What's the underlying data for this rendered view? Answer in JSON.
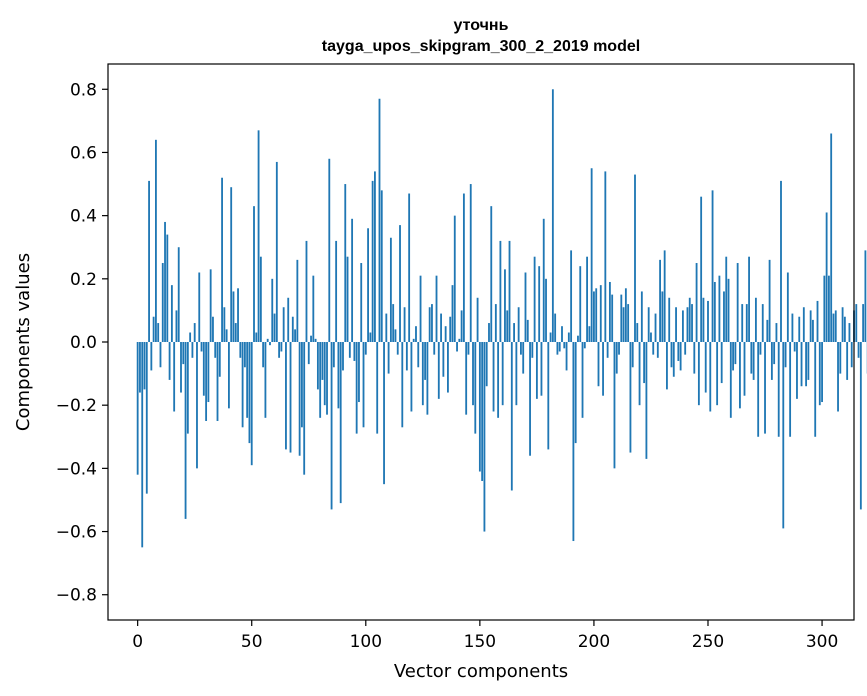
{
  "chart_data": {
    "type": "bar",
    "title_line1": "уточнь",
    "title_line2": "tayga_upos_skipgram_300_2_2019 model",
    "xlabel": "Vector components",
    "ylabel": "Components values",
    "xlim": [
      -13,
      314
    ],
    "ylim": [
      -0.88,
      0.88
    ],
    "xticks": [
      0,
      50,
      100,
      150,
      200,
      250,
      300
    ],
    "xtick_labels": [
      "0",
      "50",
      "100",
      "150",
      "200",
      "250",
      "300"
    ],
    "yticks": [
      0.8,
      0.6,
      0.4,
      0.2,
      0.0,
      -0.2,
      -0.4,
      -0.6,
      -0.8
    ],
    "ytick_labels": [
      "0.8",
      "0.6",
      "0.4",
      "0.2",
      "0.0",
      "−0.2",
      "−0.4",
      "−0.6",
      "−0.8"
    ],
    "bar_color": "#1f77b4",
    "grid": false,
    "values": [
      -0.42,
      -0.16,
      -0.65,
      -0.15,
      -0.48,
      0.51,
      -0.09,
      0.08,
      0.64,
      0.06,
      -0.08,
      0.25,
      0.38,
      0.34,
      -0.12,
      0.18,
      -0.22,
      0.1,
      0.3,
      -0.16,
      -0.07,
      -0.56,
      -0.29,
      0.03,
      -0.05,
      0.06,
      -0.4,
      0.22,
      -0.03,
      -0.17,
      -0.25,
      -0.19,
      0.23,
      0.08,
      -0.05,
      -0.25,
      -0.11,
      0.52,
      0.11,
      0.04,
      -0.21,
      0.49,
      0.16,
      0.06,
      0.17,
      -0.05,
      -0.27,
      -0.08,
      -0.24,
      -0.32,
      -0.39,
      0.43,
      0.03,
      0.67,
      0.27,
      -0.08,
      -0.24,
      0.01,
      -0.01,
      0.2,
      0.09,
      0.57,
      -0.05,
      -0.03,
      0.11,
      -0.34,
      0.14,
      -0.35,
      0.08,
      0.04,
      0.26,
      -0.36,
      -0.27,
      -0.42,
      0.32,
      -0.07,
      0.02,
      0.21,
      0.01,
      -0.15,
      -0.24,
      -0.12,
      -0.2,
      -0.23,
      0.58,
      -0.53,
      -0.08,
      0.32,
      -0.21,
      -0.51,
      -0.09,
      0.5,
      0.27,
      -0.05,
      0.39,
      -0.06,
      -0.29,
      -0.19,
      0.25,
      -0.27,
      -0.04,
      0.36,
      0.03,
      0.51,
      0.54,
      -0.29,
      0.77,
      0.48,
      -0.45,
      0.09,
      -0.1,
      0.33,
      0.12,
      0.04,
      -0.04,
      0.37,
      -0.27,
      0.11,
      -0.09,
      0.47,
      -0.22,
      0.01,
      0.05,
      -0.08,
      0.21,
      -0.2,
      -0.12,
      -0.23,
      0.11,
      0.12,
      -0.04,
      0.21,
      -0.18,
      0.09,
      -0.11,
      0.05,
      -0.16,
      0.08,
      0.18,
      0.4,
      -0.03,
      0.01,
      0.1,
      0.47,
      -0.23,
      -0.04,
      0.5,
      -0.2,
      -0.29,
      0.14,
      -0.41,
      -0.44,
      -0.6,
      -0.14,
      0.06,
      0.43,
      -0.22,
      0.12,
      -0.24,
      0.32,
      -0.2,
      0.23,
      0.1,
      0.32,
      -0.47,
      0.06,
      -0.2,
      0.11,
      -0.04,
      -0.1,
      0.22,
      0.07,
      -0.36,
      -0.05,
      0.27,
      -0.18,
      0.24,
      -0.17,
      0.39,
      0.2,
      -0.34,
      0.03,
      0.8,
      0.09,
      -0.04,
      -0.03,
      0.05,
      -0.02,
      -0.09,
      0.03,
      0.29,
      -0.63,
      -0.32,
      0.02,
      0.24,
      -0.24,
      -0.02,
      0.27,
      0.05,
      0.55,
      0.16,
      0.17,
      -0.14,
      0.18,
      -0.17,
      0.54,
      -0.05,
      0.19,
      0.15,
      -0.4,
      -0.1,
      -0.04,
      0.15,
      0.11,
      0.17,
      0.12,
      -0.35,
      -0.08,
      0.53,
      0.06,
      -0.2,
      0.16,
      -0.13,
      -0.37,
      0.11,
      0.03,
      -0.04,
      0.09,
      -0.05,
      0.26,
      0.16,
      0.29,
      -0.15,
      0.14,
      -0.08,
      -0.11,
      0.11,
      -0.06,
      -0.09,
      0.1,
      -0.04,
      0.11,
      0.14,
      0.12,
      -0.1,
      0.25,
      -0.2,
      0.46,
      0.14,
      -0.16,
      0.13,
      -0.22,
      0.48,
      0.19,
      -0.2,
      0.21,
      -0.13,
      0.16,
      0.27,
      0.2,
      -0.24,
      -0.09,
      -0.07,
      0.25,
      -0.21,
      0.12,
      -0.17,
      0.12,
      0.27,
      -0.1,
      -0.12,
      0.14,
      -0.3,
      -0.04,
      0.12,
      -0.29,
      0.07,
      0.26,
      -0.12,
      -0.07,
      0.06,
      -0.3,
      0.51,
      -0.59,
      -0.08,
      0.22,
      -0.3,
      0.09,
      -0.03,
      -0.18,
      0.08,
      -0.14,
      0.11,
      -0.14,
      -0.12,
      0.1,
      0.07,
      -0.3,
      0.13,
      -0.2,
      -0.19,
      0.21,
      0.41,
      0.21,
      0.66,
      0.09,
      0.1,
      -0.22,
      -0.1,
      0.11,
      0.08,
      -0.12,
      0.06,
      -0.08,
      0.1,
      0.12,
      -0.05,
      -0.53,
      0.12,
      0.29,
      -0.1
    ]
  }
}
